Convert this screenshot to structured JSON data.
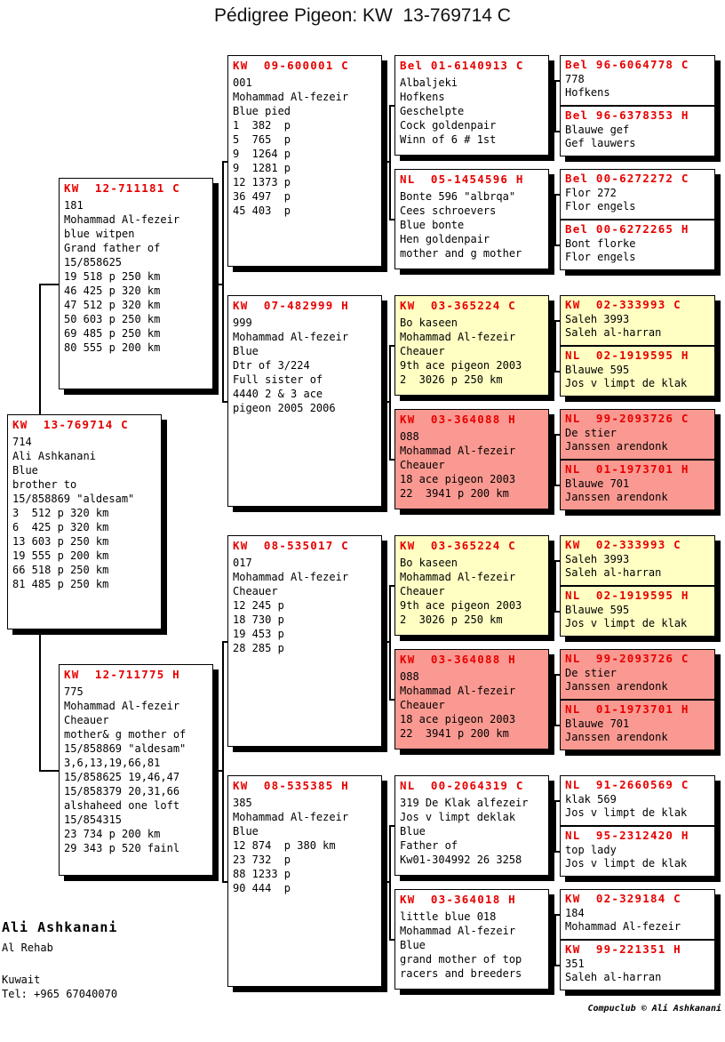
{
  "title": "Pédigree Pigeon: KW  13-769714 C",
  "colors": {
    "header_text": "#e60000",
    "highlight_yellow": "#ffffc3",
    "highlight_red": "#fa9991",
    "line_color": "#000000"
  },
  "subject": {
    "header": "KW  13-769714 C",
    "bg": "white",
    "lines": [
      "714",
      "Ali Ashkanani",
      "Blue",
      "brother to",
      "15/858869 \"aldesam\"",
      "3  512 p 320 km",
      "6  425 p 320 km",
      "13 603 p 250 km",
      "19 555 p 200 km",
      "66 518 p 250 km",
      "81 485 p 250 km"
    ]
  },
  "parents": [
    {
      "header": "KW  12-711181 C",
      "bg": "white",
      "lines": [
        "181",
        "Mohammad Al-fezeir",
        "blue witpen",
        "Grand father of",
        "15/858625",
        "19 518 p 250 km",
        "46 425 p 320 km",
        "47 512 p 320 km",
        "50 603 p 250 km",
        "69 485 p 250 km",
        "80 555 p 200 km"
      ]
    },
    {
      "header": "KW  12-711775 H",
      "bg": "white",
      "lines": [
        "775",
        "Mohammad Al-fezeir",
        "Cheauer",
        "mother& g mother of",
        "15/858869 \"aldesam\"",
        "3,6,13,19,66,81",
        "15/858625 19,46,47",
        "15/858379 20,31,66",
        "alshaheed one loft",
        "15/854315",
        "23 734 p 200 km",
        "29 343 p 520 fainl"
      ]
    }
  ],
  "grandparents": [
    {
      "header": "KW  09-600001 C",
      "bg": "white",
      "lines": [
        "001",
        "Mohammad Al-fezeir",
        "Blue pied",
        "1  382  p",
        "5  765  p",
        "9  1264 p",
        "9  1281 p",
        "12 1373 p",
        "36 497  p",
        "45 403  p"
      ]
    },
    {
      "header": "KW  07-482999 H",
      "bg": "white",
      "lines": [
        "999",
        "Mohammad Al-fezeir",
        "Blue",
        "Dtr of 3/224",
        "Full sister of",
        "4440 2 & 3 ace",
        "pigeon 2005 2006"
      ]
    },
    {
      "header": "KW  08-535017 C",
      "bg": "white",
      "lines": [
        "017",
        "Mohammad Al-fezeir",
        "Cheauer",
        "12 245 p",
        "18 730 p",
        "19 453 p",
        "28 285 p"
      ]
    },
    {
      "header": "KW  08-535385 H",
      "bg": "white",
      "lines": [
        "385",
        "Mohammad Al-fezeir",
        "Blue",
        "12 874  p 380 km",
        "23 732  p",
        "88 1233 p",
        "90 444  p"
      ]
    }
  ],
  "great_grandparents": [
    {
      "header": "Bel 01-6140913 C",
      "bg": "white",
      "lines": [
        "Albaljeki",
        "Hofkens",
        "Geschelpte",
        "Cock goldenpair",
        "Winn of 6 # 1st"
      ]
    },
    {
      "header": "NL  05-1454596 H",
      "bg": "white",
      "lines": [
        "Bonte 596 \"albrqa\"",
        "Cees schroevers",
        "Blue bonte",
        "Hen goldenpair",
        "mother and g mother"
      ]
    },
    {
      "header": "KW  03-365224 C",
      "bg": "yellow",
      "lines": [
        "Bo kaseen",
        "Mohammad Al-fezeir",
        "Cheauer",
        "9th ace pigeon 2003",
        "2  3026 p 250 km"
      ]
    },
    {
      "header": "KW  03-364088 H",
      "bg": "red",
      "lines": [
        "088",
        "Mohammad Al-fezeir",
        "Cheauer",
        "18 ace pigeon 2003",
        "22  3941 p 200 km"
      ]
    },
    {
      "header": "KW  03-365224 C",
      "bg": "yellow",
      "lines": [
        "Bo kaseen",
        "Mohammad Al-fezeir",
        "Cheauer",
        "9th ace pigeon 2003",
        "2  3026 p 250 km"
      ]
    },
    {
      "header": "KW  03-364088 H",
      "bg": "red",
      "lines": [
        "088",
        "Mohammad Al-fezeir",
        "Cheauer",
        "18 ace pigeon 2003",
        "22  3941 p 200 km"
      ]
    },
    {
      "header": "NL  00-2064319 C",
      "bg": "white",
      "lines": [
        "319 De Klak alfezeir",
        "Jos v limpt deklak",
        "Blue",
        "Father of",
        "Kw01-304992 26 3258"
      ]
    },
    {
      "header": "KW  03-364018 H",
      "bg": "white",
      "lines": [
        "little blue 018",
        "Mohammad Al-fezeir",
        "Blue",
        "grand mother of top",
        "racers and breeders"
      ]
    }
  ],
  "great_great_grandparents": [
    {
      "header": "Bel 96-6064778 C",
      "bg": "white",
      "lines": [
        "778",
        "Hofkens"
      ]
    },
    {
      "header": "Bel 96-6378353 H",
      "bg": "white",
      "lines": [
        "Blauwe gef",
        "Gef lauwers"
      ]
    },
    {
      "header": "Bel 00-6272272 C",
      "bg": "white",
      "lines": [
        "Flor 272",
        "Flor engels"
      ]
    },
    {
      "header": "Bel 00-6272265 H",
      "bg": "white",
      "lines": [
        "Bont florke",
        "Flor engels"
      ]
    },
    {
      "header": "KW  02-333993 C",
      "bg": "yellow",
      "lines": [
        "Saleh 3993",
        "Saleh al-harran"
      ]
    },
    {
      "header": "NL  02-1919595 H",
      "bg": "yellow",
      "lines": [
        "Blauwe 595",
        "Jos v limpt de klak"
      ]
    },
    {
      "header": "NL  99-2093726 C",
      "bg": "red",
      "lines": [
        "De stier",
        "Janssen arendonk"
      ]
    },
    {
      "header": "NL  01-1973701 H",
      "bg": "red",
      "lines": [
        "Blauwe 701",
        "Janssen arendonk"
      ]
    },
    {
      "header": "KW  02-333993 C",
      "bg": "yellow",
      "lines": [
        "Saleh 3993",
        "Saleh al-harran"
      ]
    },
    {
      "header": "NL  02-1919595 H",
      "bg": "yellow",
      "lines": [
        "Blauwe 595",
        "Jos v limpt de klak"
      ]
    },
    {
      "header": "NL  99-2093726 C",
      "bg": "red",
      "lines": [
        "De stier",
        "Janssen arendonk"
      ]
    },
    {
      "header": "NL  01-1973701 H",
      "bg": "red",
      "lines": [
        "Blauwe 701",
        "Janssen arendonk"
      ]
    },
    {
      "header": "NL  91-2660569 C",
      "bg": "white",
      "lines": [
        "klak 569",
        "Jos v limpt de klak"
      ]
    },
    {
      "header": "NL  95-2312420 H",
      "bg": "white",
      "lines": [
        "top lady",
        "Jos v limpt de klak"
      ]
    },
    {
      "header": "KW  02-329184 C",
      "bg": "white",
      "lines": [
        "184",
        "Mohammad Al-fezeir"
      ]
    },
    {
      "header": "KW  99-221351 H",
      "bg": "white",
      "lines": [
        "351",
        "Saleh al-harran"
      ]
    }
  ],
  "owner": {
    "name": "Ali Ashkanani",
    "address": "Al Rehab",
    "country": "Kuwait",
    "phone": "Tel: +965 67040070"
  },
  "footer_credit": "Compuclub © Ali Ashkanani"
}
